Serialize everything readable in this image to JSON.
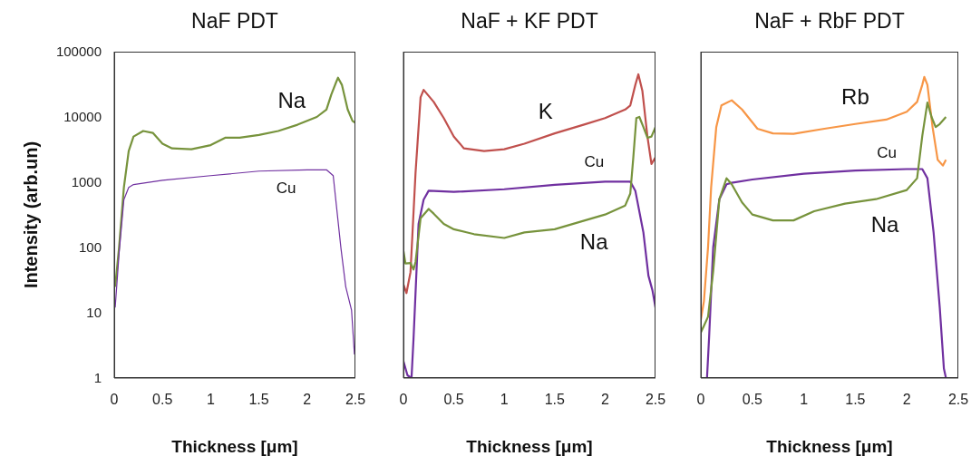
{
  "chart_data": [
    {
      "type": "line",
      "title": "NaF PDT",
      "xlabel": "Thickness [μm]",
      "ylabel": "Intensity (arb.un)",
      "log": "y",
      "xlim": [
        0,
        2.5
      ],
      "xticks": [
        0,
        0.5,
        1,
        1.5,
        2,
        2.5
      ],
      "ylim": [
        1,
        100000
      ],
      "yticks": [
        1,
        10,
        100,
        1000,
        10000,
        100000
      ],
      "series": [
        {
          "name": "Na",
          "color": "#77933c",
          "x": [
            0.01,
            0.05,
            0.1,
            0.15,
            0.2,
            0.3,
            0.4,
            0.5,
            0.6,
            0.8,
            1.0,
            1.15,
            1.3,
            1.5,
            1.7,
            1.9,
            2.1,
            2.2,
            2.25,
            2.3,
            2.32,
            2.36,
            2.42,
            2.47,
            2.5
          ],
          "values": [
            25,
            100,
            830,
            3000,
            5000,
            6100,
            5700,
            3900,
            3300,
            3200,
            3700,
            4800,
            4800,
            5300,
            6100,
            7600,
            10000,
            13000,
            22000,
            34000,
            40000,
            31000,
            13000,
            8700,
            8100
          ]
        },
        {
          "name": "Cu",
          "color": "#7030a0",
          "x": [
            0.01,
            0.05,
            0.1,
            0.15,
            0.2,
            0.5,
            1.0,
            1.5,
            2.0,
            2.2,
            2.27,
            2.35,
            2.4,
            2.46,
            2.49
          ],
          "values": [
            12,
            80,
            540,
            830,
            920,
            1070,
            1260,
            1480,
            1550,
            1550,
            1260,
            98,
            25,
            11,
            2.3
          ]
        }
      ]
    },
    {
      "type": "line",
      "title": "NaF + KF PDT",
      "xlabel": "Thickness [μm]",
      "log": "y",
      "tick_labels": "x",
      "xlim": [
        0,
        2.5
      ],
      "xticks": [
        0,
        0.5,
        1,
        1.5,
        2,
        2.5
      ],
      "ylim": [
        1,
        100000
      ],
      "yticks": [
        1,
        10,
        100,
        1000,
        10000,
        100000
      ],
      "series": [
        {
          "name": "K",
          "color": "#c0504d",
          "x": [
            0,
            0.03,
            0.07,
            0.12,
            0.17,
            0.2,
            0.3,
            0.4,
            0.5,
            0.6,
            0.8,
            1.0,
            1.2,
            1.5,
            1.8,
            2.0,
            2.2,
            2.25,
            2.3,
            2.33,
            2.37,
            2.42,
            2.46,
            2.5
          ],
          "values": [
            27,
            20,
            42,
            1400,
            20000,
            26000,
            17000,
            9600,
            5000,
            3300,
            3000,
            3200,
            3900,
            5600,
            7700,
            9600,
            13000,
            15000,
            31000,
            45000,
            25000,
            5000,
            1900,
            2400
          ]
        },
        {
          "name": "Cu",
          "color": "#7030a0",
          "x": [
            0,
            0.04,
            0.08,
            0.1,
            0.15,
            0.2,
            0.25,
            0.5,
            1.0,
            1.5,
            2.0,
            2.25,
            2.3,
            2.38,
            2.43,
            2.47,
            2.5
          ],
          "values": [
            1.8,
            1.1,
            1,
            4,
            230,
            540,
            740,
            710,
            780,
            910,
            1020,
            1020,
            740,
            170,
            37,
            22,
            12
          ]
        },
        {
          "name": "Na",
          "color": "#77933c",
          "x": [
            0,
            0.02,
            0.07,
            0.1,
            0.12,
            0.17,
            0.25,
            0.3,
            0.4,
            0.5,
            0.7,
            1.0,
            1.2,
            1.5,
            1.8,
            2.0,
            2.2,
            2.25,
            2.28,
            2.31,
            2.34,
            2.38,
            2.42,
            2.46,
            2.5
          ],
          "values": [
            88,
            57,
            58,
            46,
            60,
            280,
            390,
            330,
            230,
            190,
            160,
            140,
            170,
            190,
            260,
            320,
            440,
            670,
            2400,
            9600,
            10000,
            7000,
            4800,
            5000,
            7000
          ]
        }
      ]
    },
    {
      "type": "line",
      "title": "NaF + RbF PDT",
      "xlabel": "Thickness [μm]",
      "log": "y",
      "tick_labels": "x",
      "xlim": [
        0,
        2.5
      ],
      "xticks": [
        0,
        0.5,
        1,
        1.5,
        2,
        2.5
      ],
      "ylim": [
        1,
        100000
      ],
      "yticks": [
        1,
        10,
        100,
        1000,
        10000,
        100000
      ],
      "series": [
        {
          "name": "Rb",
          "color": "#f79646",
          "x": [
            0,
            0.03,
            0.07,
            0.1,
            0.15,
            0.2,
            0.3,
            0.4,
            0.55,
            0.7,
            0.9,
            1.2,
            1.5,
            1.8,
            2.0,
            2.1,
            2.15,
            2.17,
            2.2,
            2.25,
            2.3,
            2.35,
            2.38
          ],
          "values": [
            7.8,
            15,
            100,
            830,
            7000,
            15000,
            18000,
            13000,
            6600,
            5600,
            5500,
            6600,
            7800,
            9100,
            12000,
            17000,
            31000,
            41000,
            31000,
            7000,
            2200,
            1800,
            2200
          ]
        },
        {
          "name": "Cu",
          "color": "#7030a0",
          "x": [
            0.06,
            0.08,
            0.12,
            0.18,
            0.25,
            0.3,
            0.5,
            1.0,
            1.5,
            2.0,
            2.15,
            2.2,
            2.26,
            2.32,
            2.36,
            2.38
          ],
          "values": [
            1,
            4.1,
            100,
            550,
            930,
            980,
            1100,
            1350,
            1510,
            1590,
            1590,
            1150,
            170,
            12,
            1.4,
            1
          ]
        },
        {
          "name": "Na",
          "color": "#77933c",
          "x": [
            0,
            0.03,
            0.07,
            0.12,
            0.18,
            0.25,
            0.3,
            0.4,
            0.5,
            0.7,
            0.9,
            1.1,
            1.4,
            1.7,
            2.0,
            2.1,
            2.15,
            2.2,
            2.24,
            2.28,
            2.32,
            2.38
          ],
          "values": [
            5,
            6.3,
            8.7,
            43,
            550,
            1150,
            930,
            490,
            320,
            260,
            260,
            360,
            470,
            550,
            760,
            1150,
            5100,
            16600,
            10000,
            7000,
            7800,
            10000
          ]
        }
      ]
    }
  ]
}
